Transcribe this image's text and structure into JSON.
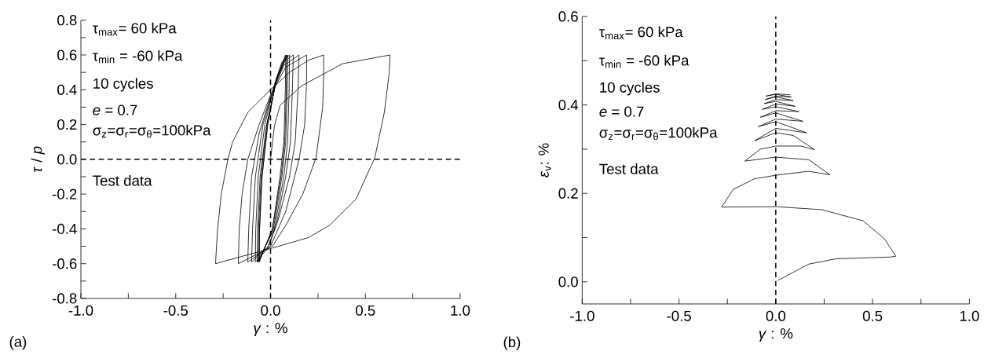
{
  "chart_data": [
    {
      "type": "line",
      "xlabel": "*γ* : %",
      "ylabel": "*τ* / *p*",
      "xlim": [
        -1,
        1
      ],
      "ylim": [
        -0.8,
        0.8
      ],
      "xticks": [
        {
          "value": -1,
          "label": "-1.0"
        },
        {
          "value": -0.75,
          "label": null
        },
        {
          "value": -0.5,
          "label": "-0.5"
        },
        {
          "value": -0.25,
          "label": null
        },
        {
          "value": 0,
          "label": "0.0"
        },
        {
          "value": 0.25,
          "label": null
        },
        {
          "value": 0.5,
          "label": "0.5"
        },
        {
          "value": 0.75,
          "label": null
        },
        {
          "value": 1,
          "label": "1.0"
        }
      ],
      "yticks": [
        {
          "value": -0.8,
          "label": "-0.8"
        },
        {
          "value": -0.7,
          "label": null
        },
        {
          "value": -0.6,
          "label": "-0.6"
        },
        {
          "value": -0.5,
          "label": null
        },
        {
          "value": -0.4,
          "label": "-0.4"
        },
        {
          "value": -0.3,
          "label": null
        },
        {
          "value": -0.2,
          "label": "-0.2"
        },
        {
          "value": -0.1,
          "label": null
        },
        {
          "value": 0,
          "label": "0.0"
        },
        {
          "value": 0.1,
          "label": null
        },
        {
          "value": 0.2,
          "label": "0.2"
        },
        {
          "value": 0.3,
          "label": null
        },
        {
          "value": 0.4,
          "label": "0.4"
        },
        {
          "value": 0.5,
          "label": null
        },
        {
          "value": 0.6,
          "label": "0.6"
        },
        {
          "value": 0.7,
          "label": null
        },
        {
          "value": 0.8,
          "label": "0.8"
        }
      ],
      "marker": "none",
      "line_style": "solid",
      "ref_lines": [
        {
          "axis": "x",
          "value": 0,
          "line_style": "dashed"
        },
        {
          "axis": "y",
          "value": 0,
          "line_style": "dashed"
        }
      ],
      "annotations": [
        "τ$_{max}$= 60 kPa",
        "τ$_{min}$ = -60 kPa",
        "10 cycles",
        "*e* = 0.7",
        "σ$_{z}$=σ$_{r}$=σ$_{θ}$=100kPa",
        "Test data",
        "(a)"
      ],
      "series": [
        {
          "color": "#000000",
          "x": [
            0,
            0.02,
            0.05,
            0.16,
            0.38,
            0.63,
            0.625,
            0.6,
            0.55,
            0.45,
            0.31,
            0.2,
            0.01,
            -0.29,
            -0.28,
            -0.26,
            -0.225,
            -0.2,
            -0.12,
            0,
            0.1,
            0.2,
            0.28,
            0.28,
            0.275,
            0.24,
            0.17,
            0.08,
            0.01,
            -0.17,
            -0.165,
            -0.15,
            -0.12,
            -0.06,
            0,
            0.08,
            0.19,
            0.19,
            0.18,
            0.15,
            0.08,
            0,
            -0.12,
            -0.115,
            -0.1,
            -0.06,
            0,
            0.07,
            0.15,
            0.145,
            0.13,
            0.1,
            0.04,
            -0.01,
            -0.1,
            -0.095,
            -0.08,
            -0.04,
            0.02,
            0.07,
            0.12,
            0.115,
            0.105,
            0.08,
            0.03,
            -0.02,
            -0.08,
            -0.078,
            -0.065,
            -0.03,
            0.02,
            0.06,
            0.1,
            0.098,
            0.09,
            0.07,
            0.02,
            -0.07,
            -0.068,
            -0.055,
            -0.02,
            0.03,
            0.09,
            0.088,
            0.08,
            0.06,
            0.015,
            -0.065,
            -0.063,
            -0.05,
            -0.02,
            0.03,
            0.085,
            0.083,
            0.075,
            0.055,
            0.01,
            -0.06,
            -0.058,
            -0.045,
            -0.015,
            0.03,
            0.08,
            0.078,
            0.07,
            0.05,
            0.01,
            -0.06,
            -0.058,
            -0.045,
            -0.015,
            0.03,
            0.08
          ],
          "values": [
            0,
            0.19,
            0.31,
            0.42,
            0.55,
            0.6,
            0.49,
            0.27,
            0.01,
            -0.23,
            -0.38,
            -0.45,
            -0.51,
            -0.6,
            -0.41,
            -0.2,
            0,
            0.1,
            0.27,
            0.4,
            0.5,
            0.57,
            0.6,
            0.5,
            0.3,
            0.01,
            -0.2,
            -0.38,
            -0.5,
            -0.6,
            -0.4,
            -0.2,
            0,
            0.2,
            0.37,
            0.53,
            0.6,
            0.45,
            0.2,
            0,
            -0.3,
            -0.5,
            -0.59,
            -0.4,
            -0.1,
            0.15,
            0.36,
            0.54,
            0.6,
            0.4,
            0.1,
            -0.1,
            -0.35,
            -0.5,
            -0.59,
            -0.4,
            -0.1,
            0.2,
            0.42,
            0.56,
            0.6,
            0.4,
            0.1,
            -0.1,
            -0.38,
            -0.52,
            -0.59,
            -0.4,
            -0.1,
            0.2,
            0.43,
            0.56,
            0.6,
            0.4,
            0.1,
            -0.1,
            -0.4,
            -0.59,
            -0.4,
            -0.1,
            0.2,
            0.45,
            0.6,
            0.4,
            0.1,
            -0.1,
            -0.4,
            -0.59,
            -0.4,
            -0.1,
            0.2,
            0.45,
            0.6,
            0.4,
            0.1,
            -0.1,
            -0.4,
            -0.59,
            -0.4,
            -0.1,
            0.2,
            0.46,
            0.6,
            0.4,
            0.1,
            -0.1,
            -0.4,
            -0.59,
            -0.4,
            -0.1,
            0.2,
            0.46,
            0.6
          ]
        }
      ]
    },
    {
      "type": "line",
      "xlabel": "*γ* : %",
      "ylabel": "*ε*$_{v}$: %",
      "xlim": [
        -1,
        1
      ],
      "ylim": [
        -0.05,
        0.6
      ],
      "xticks": [
        {
          "value": -1,
          "label": "-1.0"
        },
        {
          "value": -0.75,
          "label": null
        },
        {
          "value": -0.5,
          "label": "-0.5"
        },
        {
          "value": -0.25,
          "label": null
        },
        {
          "value": 0,
          "label": "0.0"
        },
        {
          "value": 0.25,
          "label": null
        },
        {
          "value": 0.5,
          "label": "0.5"
        },
        {
          "value": 0.75,
          "label": null
        },
        {
          "value": 1,
          "label": "1.0"
        }
      ],
      "yticks": [
        {
          "value": 0,
          "label": "0.0"
        },
        {
          "value": 0.1,
          "label": null
        },
        {
          "value": 0.2,
          "label": "0.2"
        },
        {
          "value": 0.3,
          "label": null
        },
        {
          "value": 0.4,
          "label": "0.4"
        },
        {
          "value": 0.5,
          "label": null
        },
        {
          "value": 0.6,
          "label": "0.6"
        }
      ],
      "marker": "none",
      "line_style": "solid",
      "ref_lines": [
        {
          "axis": "x",
          "value": 0,
          "line_style": "dashed"
        }
      ],
      "annotations": [
        "τ$_{max}$= 60 kPa",
        "τ$_{min}$ = -60 kPa",
        "10 cycles",
        "*e* = 0.7",
        "σ$_{z}$=σ$_{r}$=σ$_{θ}$=100kPa",
        "Test data",
        "(b)"
      ],
      "series": [
        {
          "color": "#000000",
          "x": [
            0.01,
            0.17,
            0.31,
            0.59,
            0.62,
            0.56,
            0.45,
            0.24,
            0,
            -0.28,
            -0.22,
            -0.11,
            0,
            0.17,
            0.28,
            0.17,
            0,
            -0.16,
            -0.08,
            0,
            0.13,
            0.2,
            0.09,
            0,
            -0.11,
            0,
            0.16,
            0,
            -0.09,
            0,
            0.14,
            0,
            -0.08,
            0,
            0.12,
            0,
            -0.07,
            0,
            0.1,
            0,
            -0.06,
            0,
            0.09,
            0,
            -0.055,
            0,
            0.08,
            0,
            -0.05,
            0,
            0.075
          ],
          "values": [
            0.003,
            0.04,
            0.052,
            0.056,
            0.058,
            0.098,
            0.138,
            0.163,
            0.17,
            0.169,
            0.209,
            0.233,
            0.241,
            0.25,
            0.242,
            0.276,
            0.282,
            0.273,
            0.3,
            0.307,
            0.307,
            0.299,
            0.331,
            0.337,
            0.319,
            0.347,
            0.337,
            0.362,
            0.351,
            0.368,
            0.363,
            0.382,
            0.372,
            0.387,
            0.385,
            0.396,
            0.39,
            0.402,
            0.397,
            0.408,
            0.403,
            0.412,
            0.41,
            0.418,
            0.412,
            0.42,
            0.418,
            0.424,
            0.42,
            0.425,
            0.423
          ]
        }
      ]
    }
  ]
}
